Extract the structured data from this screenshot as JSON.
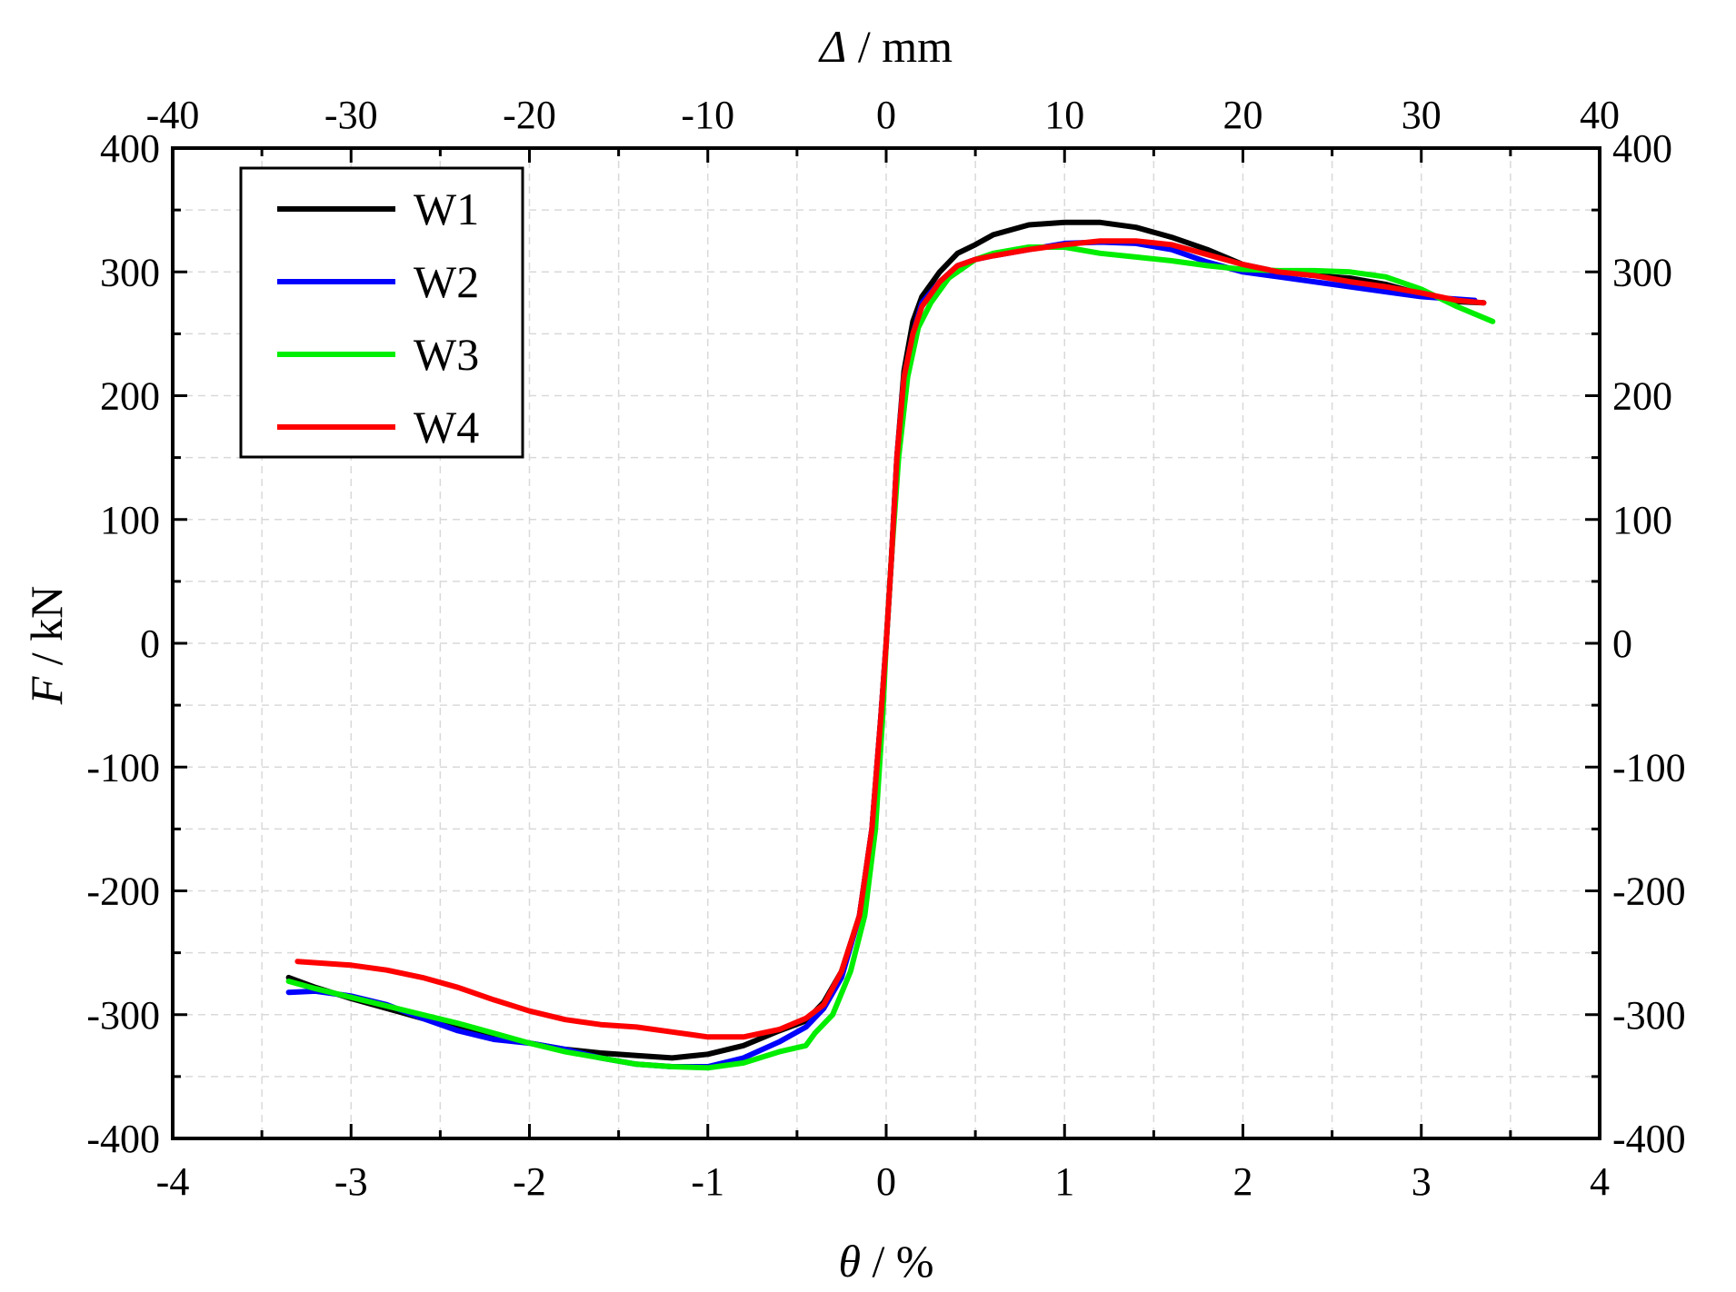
{
  "chart_data": {
    "type": "line",
    "title": "",
    "xlabel": {
      "symbol": "θ",
      "unit": "/ %"
    },
    "x2label": {
      "symbol": "Δ",
      "unit": "/ mm"
    },
    "ylabel": {
      "symbol": "F",
      "unit": "/ kN"
    },
    "xlim": [
      -4,
      4
    ],
    "x2lim": [
      -40,
      40
    ],
    "ylim": [
      -400,
      400
    ],
    "x_ticks": [
      "-4",
      "-3",
      "-2",
      "-1",
      "0",
      "1",
      "2",
      "3",
      "4"
    ],
    "x2_ticks": [
      "-40",
      "-30",
      "-20",
      "-10",
      "0",
      "10",
      "20",
      "30",
      "40"
    ],
    "y_ticks": [
      "-400",
      "-300",
      "-200",
      "-100",
      "0",
      "100",
      "200",
      "300",
      "400"
    ],
    "y2_ticks": [
      "-400",
      "-300",
      "-200",
      "-100",
      "0",
      "100",
      "200",
      "300",
      "400"
    ],
    "grid": true,
    "legend_position": "top-left",
    "series": [
      {
        "name": "W1",
        "color": "#000000",
        "points": [
          [
            -3.35,
            -270
          ],
          [
            -3.2,
            -278
          ],
          [
            -3.0,
            -287
          ],
          [
            -2.8,
            -295
          ],
          [
            -2.6,
            -303
          ],
          [
            -2.4,
            -310
          ],
          [
            -2.2,
            -317
          ],
          [
            -2.0,
            -323
          ],
          [
            -1.8,
            -328
          ],
          [
            -1.6,
            -331
          ],
          [
            -1.4,
            -333
          ],
          [
            -1.2,
            -335
          ],
          [
            -1.0,
            -332
          ],
          [
            -0.8,
            -325
          ],
          [
            -0.6,
            -313
          ],
          [
            -0.45,
            -305
          ],
          [
            -0.35,
            -290
          ],
          [
            -0.25,
            -265
          ],
          [
            -0.15,
            -220
          ],
          [
            -0.08,
            -150
          ],
          [
            -0.03,
            -60
          ],
          [
            0.0,
            0
          ],
          [
            0.03,
            70
          ],
          [
            0.06,
            150
          ],
          [
            0.1,
            220
          ],
          [
            0.15,
            260
          ],
          [
            0.2,
            280
          ],
          [
            0.3,
            300
          ],
          [
            0.4,
            315
          ],
          [
            0.5,
            322
          ],
          [
            0.6,
            330
          ],
          [
            0.8,
            338
          ],
          [
            1.0,
            340
          ],
          [
            1.2,
            340
          ],
          [
            1.4,
            336
          ],
          [
            1.6,
            328
          ],
          [
            1.8,
            318
          ],
          [
            2.0,
            306
          ],
          [
            2.2,
            300
          ],
          [
            2.4,
            297
          ],
          [
            2.6,
            295
          ],
          [
            2.8,
            290
          ],
          [
            3.0,
            282
          ],
          [
            3.2,
            276
          ],
          [
            3.35,
            275
          ]
        ]
      },
      {
        "name": "W2",
        "color": "#0000ff",
        "points": [
          [
            -3.35,
            -282
          ],
          [
            -3.2,
            -281
          ],
          [
            -3.0,
            -285
          ],
          [
            -2.8,
            -292
          ],
          [
            -2.6,
            -303
          ],
          [
            -2.4,
            -313
          ],
          [
            -2.2,
            -320
          ],
          [
            -2.0,
            -323
          ],
          [
            -1.8,
            -328
          ],
          [
            -1.6,
            -335
          ],
          [
            -1.4,
            -340
          ],
          [
            -1.2,
            -342
          ],
          [
            -1.0,
            -342
          ],
          [
            -0.8,
            -335
          ],
          [
            -0.6,
            -322
          ],
          [
            -0.45,
            -310
          ],
          [
            -0.35,
            -295
          ],
          [
            -0.25,
            -270
          ],
          [
            -0.15,
            -220
          ],
          [
            -0.08,
            -150
          ],
          [
            -0.03,
            -60
          ],
          [
            0.0,
            0
          ],
          [
            0.03,
            70
          ],
          [
            0.06,
            150
          ],
          [
            0.1,
            215
          ],
          [
            0.15,
            250
          ],
          [
            0.2,
            275
          ],
          [
            0.3,
            292
          ],
          [
            0.4,
            305
          ],
          [
            0.5,
            310
          ],
          [
            0.6,
            313
          ],
          [
            0.8,
            318
          ],
          [
            1.0,
            323
          ],
          [
            1.2,
            324
          ],
          [
            1.4,
            323
          ],
          [
            1.6,
            318
          ],
          [
            1.8,
            308
          ],
          [
            2.0,
            300
          ],
          [
            2.2,
            296
          ],
          [
            2.4,
            292
          ],
          [
            2.6,
            288
          ],
          [
            2.8,
            284
          ],
          [
            3.0,
            280
          ],
          [
            3.2,
            278
          ],
          [
            3.3,
            277
          ]
        ]
      },
      {
        "name": "W3",
        "color": "#00ee00",
        "points": [
          [
            -3.35,
            -273
          ],
          [
            -3.2,
            -279
          ],
          [
            -3.0,
            -286
          ],
          [
            -2.8,
            -293
          ],
          [
            -2.6,
            -300
          ],
          [
            -2.4,
            -307
          ],
          [
            -2.2,
            -315
          ],
          [
            -2.0,
            -323
          ],
          [
            -1.8,
            -330
          ],
          [
            -1.6,
            -335
          ],
          [
            -1.4,
            -340
          ],
          [
            -1.2,
            -342
          ],
          [
            -1.0,
            -343
          ],
          [
            -0.8,
            -339
          ],
          [
            -0.6,
            -330
          ],
          [
            -0.45,
            -325
          ],
          [
            -0.4,
            -315
          ],
          [
            -0.3,
            -300
          ],
          [
            -0.2,
            -265
          ],
          [
            -0.12,
            -220
          ],
          [
            -0.06,
            -150
          ],
          [
            -0.02,
            -60
          ],
          [
            0.0,
            0
          ],
          [
            0.03,
            70
          ],
          [
            0.07,
            150
          ],
          [
            0.12,
            215
          ],
          [
            0.18,
            255
          ],
          [
            0.25,
            275
          ],
          [
            0.35,
            295
          ],
          [
            0.5,
            310
          ],
          [
            0.6,
            315
          ],
          [
            0.8,
            320
          ],
          [
            1.0,
            320
          ],
          [
            1.2,
            315
          ],
          [
            1.4,
            312
          ],
          [
            1.6,
            309
          ],
          [
            1.8,
            305
          ],
          [
            2.0,
            302
          ],
          [
            2.2,
            301
          ],
          [
            2.4,
            301
          ],
          [
            2.6,
            300
          ],
          [
            2.8,
            296
          ],
          [
            3.0,
            286
          ],
          [
            3.2,
            272
          ],
          [
            3.4,
            260
          ]
        ]
      },
      {
        "name": "W4",
        "color": "#ff0000",
        "points": [
          [
            -3.3,
            -257
          ],
          [
            -3.0,
            -260
          ],
          [
            -2.8,
            -264
          ],
          [
            -2.6,
            -270
          ],
          [
            -2.4,
            -278
          ],
          [
            -2.2,
            -288
          ],
          [
            -2.0,
            -297
          ],
          [
            -1.8,
            -304
          ],
          [
            -1.6,
            -308
          ],
          [
            -1.4,
            -310
          ],
          [
            -1.2,
            -314
          ],
          [
            -1.0,
            -318
          ],
          [
            -0.8,
            -318
          ],
          [
            -0.6,
            -312
          ],
          [
            -0.45,
            -303
          ],
          [
            -0.35,
            -292
          ],
          [
            -0.25,
            -265
          ],
          [
            -0.15,
            -220
          ],
          [
            -0.08,
            -150
          ],
          [
            -0.03,
            -60
          ],
          [
            0.0,
            0
          ],
          [
            0.03,
            70
          ],
          [
            0.06,
            150
          ],
          [
            0.1,
            215
          ],
          [
            0.15,
            250
          ],
          [
            0.2,
            272
          ],
          [
            0.3,
            292
          ],
          [
            0.4,
            305
          ],
          [
            0.5,
            310
          ],
          [
            0.6,
            313
          ],
          [
            0.8,
            318
          ],
          [
            1.0,
            322
          ],
          [
            1.2,
            325
          ],
          [
            1.4,
            325
          ],
          [
            1.6,
            322
          ],
          [
            1.8,
            314
          ],
          [
            2.0,
            306
          ],
          [
            2.2,
            300
          ],
          [
            2.4,
            297
          ],
          [
            2.6,
            292
          ],
          [
            2.8,
            288
          ],
          [
            3.0,
            283
          ],
          [
            3.2,
            277
          ],
          [
            3.35,
            275
          ]
        ]
      }
    ]
  }
}
